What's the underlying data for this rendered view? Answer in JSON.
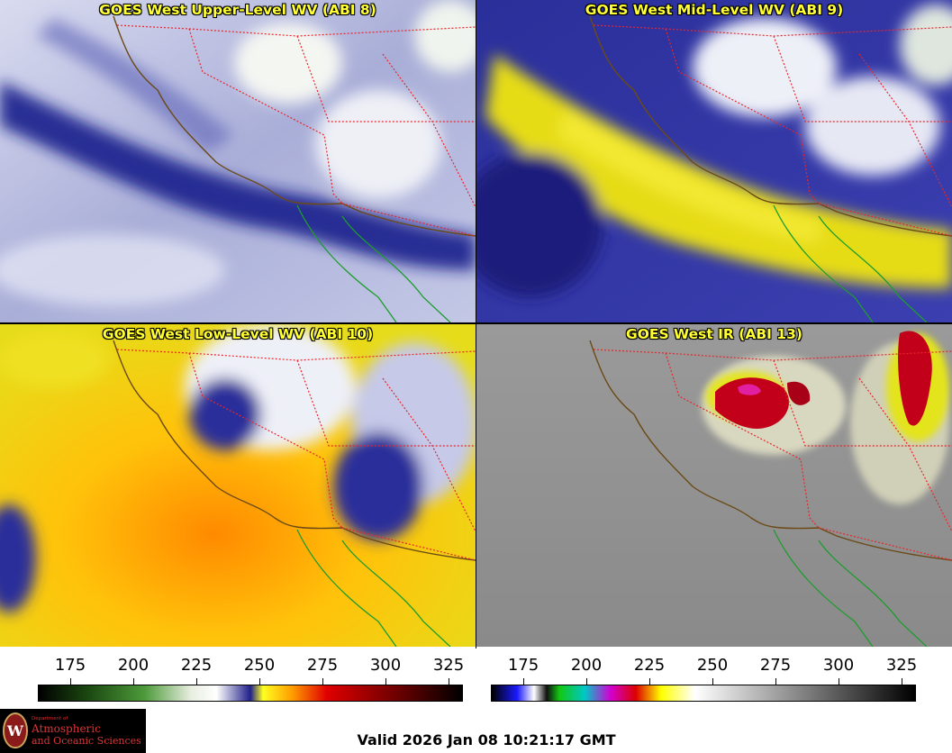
{
  "panels": [
    {
      "title": "GOES West Upper-Level WV (ABI 8)",
      "colormap": "wv-upper"
    },
    {
      "title": "GOES West Mid-Level WV (ABI 9)",
      "colormap": "wv-mid"
    },
    {
      "title": "GOES West Low-Level WV (ABI 10)",
      "colormap": "wv-low"
    },
    {
      "title": "GOES West IR (ABI 13)",
      "colormap": "ir"
    }
  ],
  "scales": {
    "wv": {
      "labels": [
        "175",
        "200",
        "225",
        "250",
        "275",
        "300",
        "325"
      ]
    },
    "ir": {
      "labels": [
        "175",
        "200",
        "225",
        "250",
        "275",
        "300",
        "325"
      ]
    }
  },
  "colors": {
    "coastline": "#6b4a16",
    "borders": "#e8262b",
    "mexico_coast": "#1e9c2e",
    "title_text": "#ffff33"
  },
  "logo": {
    "department": "Department of",
    "line1": "Atmospheric",
    "line2": "and Oceanic Sciences",
    "seal_letter": "W"
  },
  "footer": {
    "valid": "Valid 2026 Jan 08 10:21:17 GMT"
  }
}
